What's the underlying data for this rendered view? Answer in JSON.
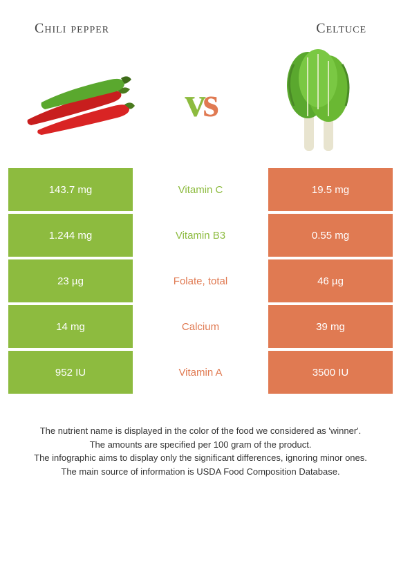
{
  "header": {
    "left_title": "Chili pepper",
    "right_title": "Celtuce",
    "vs_v": "v",
    "vs_s": "s"
  },
  "colors": {
    "left": "#8dbb3f",
    "right": "#e07a52",
    "text": "#333333",
    "bg": "#ffffff"
  },
  "rows": [
    {
      "left": "143.7 mg",
      "nutrient": "Vitamin C",
      "right": "19.5 mg",
      "winner": "left"
    },
    {
      "left": "1.244 mg",
      "nutrient": "Vitamin B3",
      "right": "0.55 mg",
      "winner": "left"
    },
    {
      "left": "23 µg",
      "nutrient": "Folate, total",
      "right": "46 µg",
      "winner": "right"
    },
    {
      "left": "14 mg",
      "nutrient": "Calcium",
      "right": "39 mg",
      "winner": "right"
    },
    {
      "left": "952 IU",
      "nutrient": "Vitamin A",
      "right": "3500 IU",
      "winner": "right"
    }
  ],
  "footer": {
    "line1": "The nutrient name is displayed in the color of the food we considered as 'winner'.",
    "line2": "The amounts are specified per 100 gram of the product.",
    "line3": "The infographic aims to display only the significant differences, ignoring minor ones.",
    "line4": "The main source of information is USDA Food Composition Database."
  }
}
